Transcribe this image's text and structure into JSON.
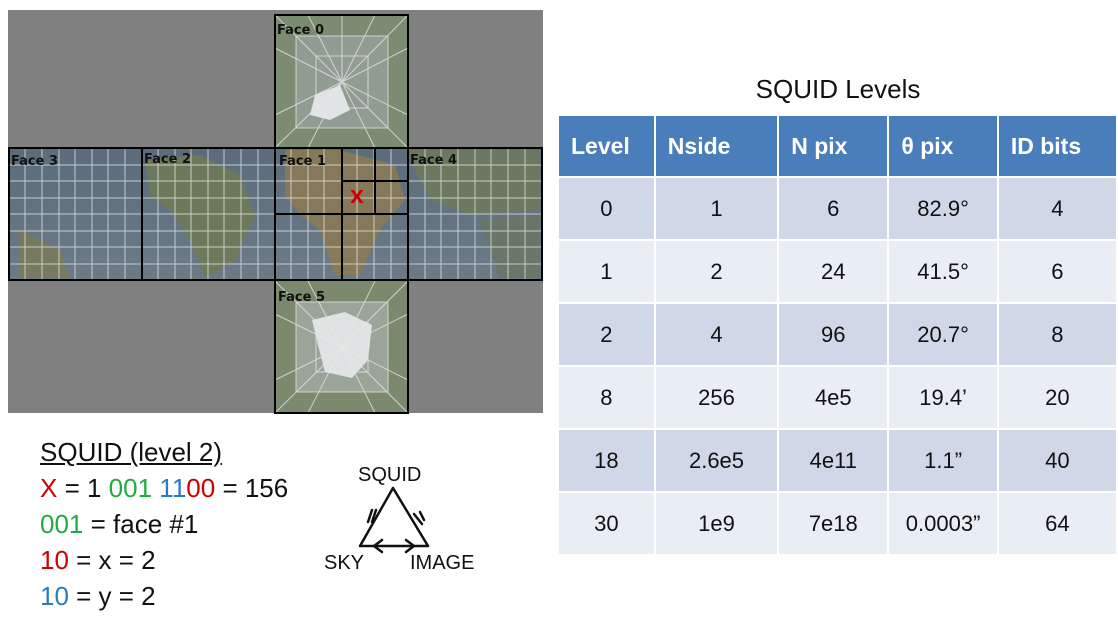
{
  "cube": {
    "faces": [
      "Face 0",
      "Face 1",
      "Face 2",
      "Face 3",
      "Face 4",
      "Face 5"
    ],
    "marker": "X"
  },
  "table": {
    "title": "SQUID Levels",
    "headers": [
      "Level",
      "Nside",
      "N pix",
      "θ pix",
      "ID bits"
    ],
    "rows": [
      [
        "0",
        "1",
        "6",
        "82.9°",
        "4"
      ],
      [
        "1",
        "2",
        "24",
        "41.5°",
        "6"
      ],
      [
        "2",
        "4",
        "96",
        "20.7°",
        "8"
      ],
      [
        "8",
        "256",
        "4e5",
        "19.4’",
        "20"
      ],
      [
        "18",
        "2.6e5",
        "4e11",
        "1.1”",
        "40"
      ],
      [
        "30",
        "1e9",
        "7e18",
        "0.0003”",
        "64"
      ]
    ]
  },
  "legend": {
    "title": "SQUID (level 2)",
    "line1": {
      "x": "X",
      "eq1": " = 1 ",
      "face_bits": "001",
      "sp": " ",
      "x_bits": "11",
      "y_bits": "00",
      "eq2": " = 156"
    },
    "line2": {
      "bits": "001",
      "text": " = face #1"
    },
    "line3": {
      "bits": "10",
      "text": " = x = 2"
    },
    "line4": {
      "bits": "10",
      "text": " = y = 2"
    }
  },
  "triangle": {
    "top": "SQUID",
    "left": "SKY",
    "right": "IMAGE"
  },
  "colors": {
    "header": "#4a7ebb",
    "red": "#cc0000",
    "green": "#22aa44",
    "blue": "#2a7ac0",
    "background_gray": "#808080"
  }
}
